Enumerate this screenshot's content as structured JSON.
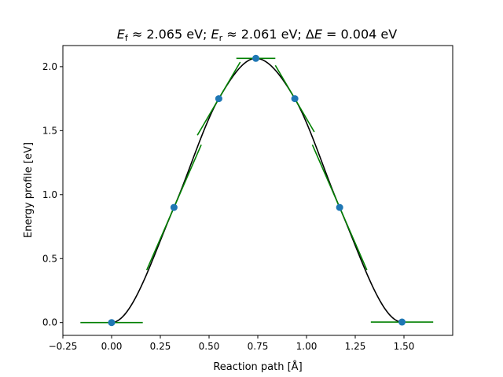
{
  "chart_data": {
    "type": "line",
    "title": "E_f ≈ 2.065 eV; E_r ≈ 2.061 eV; ΔE = 0.004 eV",
    "title_parts": {
      "ef_sym": "E",
      "ef_sub": "f",
      "ef_val": " ≈ 2.065 eV; ",
      "er_sym": "E",
      "er_sub": "r",
      "er_val": " ≈ 2.061 eV; Δ",
      "de_sym": "E",
      "de_val": " = 0.004 eV"
    },
    "xlabel": "Reaction path [Å]",
    "ylabel": "Energy profile [eV]",
    "xlim": [
      -0.25,
      1.75
    ],
    "ylim": [
      -0.1,
      2.165
    ],
    "xticks": [
      -0.25,
      0.0,
      0.25,
      0.5,
      0.75,
      1.0,
      1.25,
      1.5
    ],
    "xtick_labels": [
      "−0.25",
      "0.00",
      "0.25",
      "0.50",
      "0.75",
      "1.00",
      "1.25",
      "1.50"
    ],
    "yticks": [
      0.0,
      0.5,
      1.0,
      1.5,
      2.0
    ],
    "ytick_labels": [
      "0.0",
      "0.5",
      "1.0",
      "1.5",
      "2.0"
    ],
    "grid": false,
    "images": {
      "x": [
        0.0,
        0.32,
        0.55,
        0.74,
        0.94,
        1.17,
        1.49
      ],
      "y": [
        0.0,
        0.9,
        1.75,
        2.065,
        1.75,
        0.9,
        0.004
      ],
      "slopes": [
        0.0,
        3.5,
        2.6,
        0.0,
        -2.6,
        -3.5,
        0.0
      ],
      "half_widths": [
        0.16,
        0.14,
        0.11,
        0.1,
        0.1,
        0.14,
        0.16
      ]
    },
    "colors": {
      "curve": "#000000",
      "points": "#1f77b4",
      "tangents": "#008000"
    }
  }
}
